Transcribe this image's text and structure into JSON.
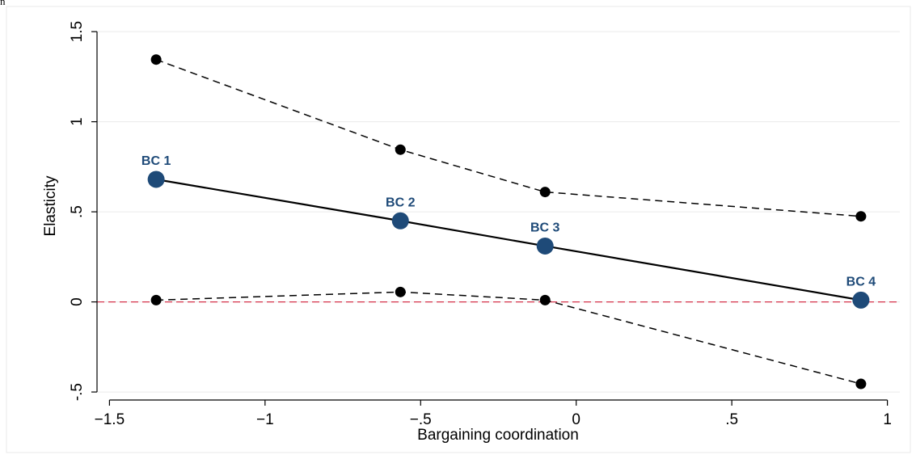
{
  "corner_label": "n",
  "chart_data": {
    "type": "line",
    "title": "",
    "xlabel": "Bargaining coordination",
    "ylabel": "Elasticity",
    "xlim": [
      -1.54,
      1.04
    ],
    "ylim": [
      -0.54,
      1.55
    ],
    "xticks": [
      {
        "value": -1.5,
        "label": "−1.5"
      },
      {
        "value": -1,
        "label": "−1"
      },
      {
        "value": -0.5,
        "label": "−.5"
      },
      {
        "value": 0,
        "label": "0"
      },
      {
        "value": 0.5,
        "label": ".5"
      },
      {
        "value": 1,
        "label": "1"
      }
    ],
    "yticks": [
      {
        "value": -0.5,
        "label": "-.5"
      },
      {
        "value": 0,
        "label": "0"
      },
      {
        "value": 0.5,
        "label": ".5"
      },
      {
        "value": 1,
        "label": "1"
      },
      {
        "value": 1.5,
        "label": "1.5"
      }
    ],
    "grid": true,
    "reference_line": {
      "y": 0,
      "color": "#d4304a",
      "style": "dashed"
    },
    "x": [
      -1.35,
      -0.565,
      -0.1,
      0.915
    ],
    "series": [
      {
        "role": "estimate",
        "values": [
          0.68,
          0.45,
          0.31,
          0.01
        ],
        "labels": [
          "BC 1",
          "BC 2",
          "BC 3",
          "BC 4"
        ],
        "color": "#1e4a78",
        "style": "solid"
      },
      {
        "role": "upper",
        "values": [
          1.345,
          0.845,
          0.61,
          0.475
        ],
        "color": "#000000",
        "style": "dashed"
      },
      {
        "role": "lower",
        "values": [
          0.01,
          0.055,
          0.01,
          -0.455
        ],
        "color": "#000000",
        "style": "dashed"
      }
    ]
  }
}
